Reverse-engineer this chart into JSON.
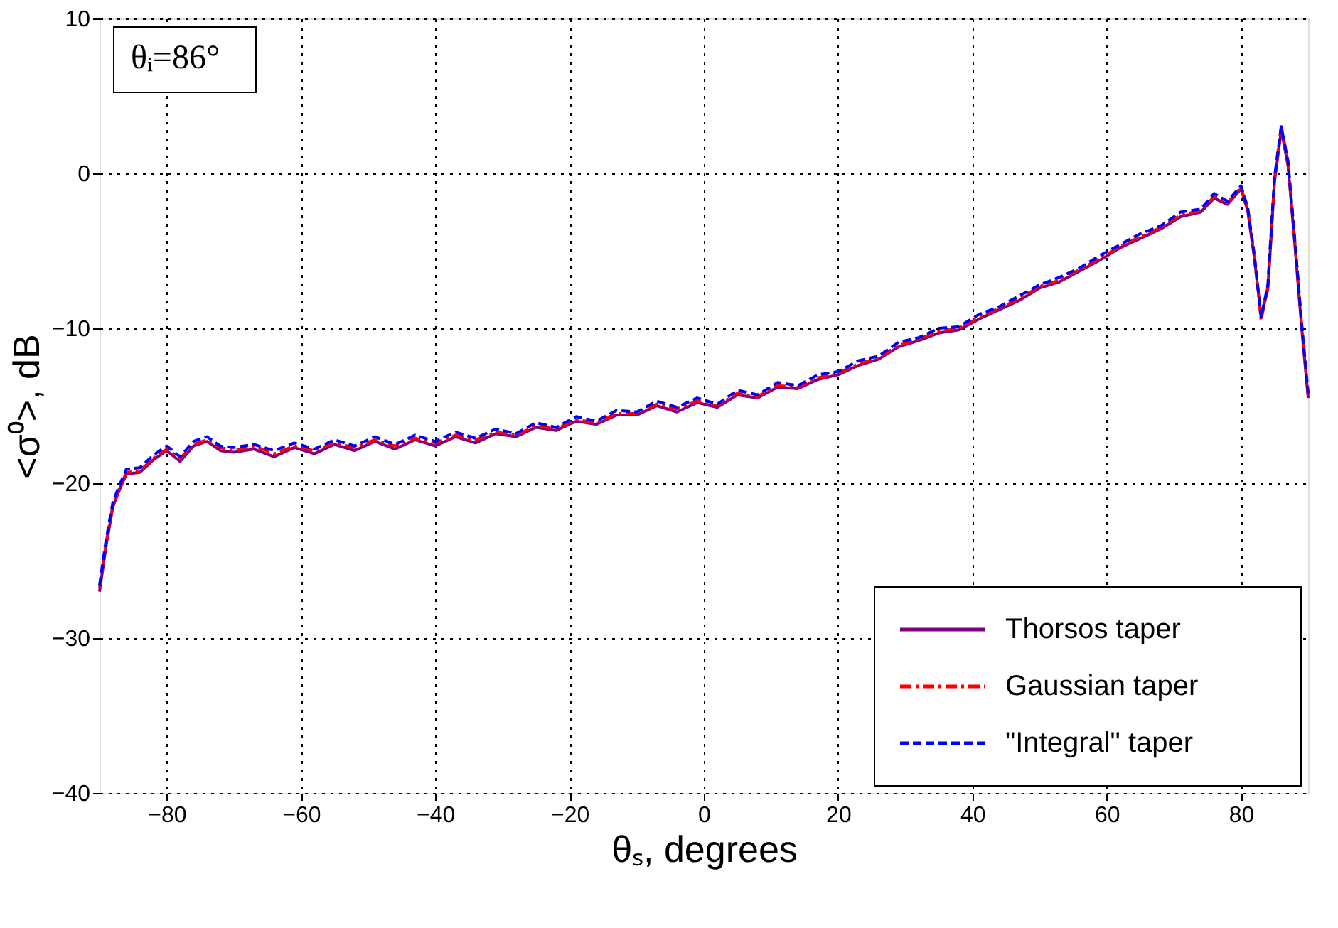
{
  "chart_data": {
    "type": "line",
    "xlabel": "θₛ, degrees",
    "ylabel": "<σ⁰>,  dB",
    "annotations": [
      "θᵢ=86°"
    ],
    "x": [
      -90,
      -89,
      -88,
      -87,
      -86,
      -84,
      -82,
      -80,
      -78,
      -76,
      -74,
      -72,
      -70,
      -67,
      -64,
      -61,
      -58,
      -55,
      -52,
      -49,
      -46,
      -43,
      -40,
      -37,
      -34,
      -31,
      -28,
      -25,
      -22,
      -19,
      -16,
      -13,
      -10,
      -7,
      -4,
      -1,
      2,
      5,
      8,
      11,
      14,
      17,
      20,
      23,
      26,
      29,
      32,
      35,
      38,
      41,
      44,
      47,
      50,
      53,
      56,
      59,
      62,
      65,
      68,
      71,
      74,
      76,
      78,
      80,
      81,
      82,
      83,
      84,
      85,
      86,
      87,
      88,
      89,
      90
    ],
    "series": [
      {
        "name": "Thorsos taper",
        "color": "#7f007f",
        "line_style": "solid",
        "values": [
          -27,
          -24,
          -21.5,
          -20.4,
          -19.4,
          -19.3,
          -18.5,
          -17.9,
          -18.6,
          -17.6,
          -17.3,
          -17.9,
          -18.0,
          -17.8,
          -18.3,
          -17.7,
          -18.1,
          -17.5,
          -17.9,
          -17.3,
          -17.8,
          -17.2,
          -17.6,
          -17.0,
          -17.4,
          -16.8,
          -17.0,
          -16.4,
          -16.6,
          -16.0,
          -16.2,
          -15.6,
          -15.6,
          -15.0,
          -15.4,
          -14.8,
          -15.1,
          -14.3,
          -14.5,
          -13.8,
          -13.9,
          -13.3,
          -13.0,
          -12.4,
          -12.0,
          -11.2,
          -10.8,
          -10.3,
          -10.1,
          -9.4,
          -8.8,
          -8.2,
          -7.4,
          -7.0,
          -6.3,
          -5.6,
          -4.8,
          -4.2,
          -3.6,
          -2.8,
          -2.5,
          -1.6,
          -2.0,
          -1.0,
          -2.4,
          -5.5,
          -9.2,
          -7.5,
          -0.5,
          2.8,
          0.5,
          -4.5,
          -9.8,
          -14.5
        ]
      },
      {
        "name": "Gaussian taper",
        "color": "#ff0000",
        "line_style": "dashdot",
        "values": [
          -26.8,
          -23.8,
          -21.4,
          -20.3,
          -19.3,
          -19.2,
          -18.4,
          -17.8,
          -18.4,
          -17.5,
          -17.2,
          -17.7,
          -17.9,
          -17.6,
          -18.1,
          -17.6,
          -17.9,
          -17.4,
          -17.7,
          -17.2,
          -17.6,
          -17.1,
          -17.4,
          -16.9,
          -17.2,
          -16.7,
          -16.9,
          -16.3,
          -16.5,
          -15.9,
          -16.1,
          -15.5,
          -15.5,
          -14.9,
          -15.2,
          -14.7,
          -15.0,
          -14.2,
          -14.4,
          -13.7,
          -13.8,
          -13.2,
          -12.9,
          -12.3,
          -11.9,
          -11.1,
          -10.7,
          -10.2,
          -10.0,
          -9.3,
          -8.7,
          -8.1,
          -7.3,
          -6.9,
          -6.2,
          -5.5,
          -4.7,
          -4.1,
          -3.5,
          -2.7,
          -2.4,
          -1.5,
          -1.9,
          -0.9,
          -2.3,
          -5.4,
          -9.5,
          -7.3,
          -0.3,
          3.1,
          0.7,
          -4.3,
          -9.6,
          -14.3
        ]
      },
      {
        "name": "\"Integral\" taper",
        "color": "#0000ff",
        "line_style": "dashed",
        "values": [
          -26.6,
          -23.6,
          -21.2,
          -20.1,
          -19.1,
          -19.0,
          -18.2,
          -17.6,
          -18.3,
          -17.3,
          -17.0,
          -17.6,
          -17.7,
          -17.5,
          -17.9,
          -17.4,
          -17.8,
          -17.2,
          -17.6,
          -17.0,
          -17.5,
          -16.9,
          -17.3,
          -16.7,
          -17.1,
          -16.5,
          -16.8,
          -16.1,
          -16.4,
          -15.7,
          -16.0,
          -15.3,
          -15.4,
          -14.7,
          -15.1,
          -14.5,
          -14.9,
          -14.0,
          -14.3,
          -13.5,
          -13.7,
          -13.0,
          -12.8,
          -12.1,
          -11.8,
          -10.9,
          -10.6,
          -10.0,
          -9.9,
          -9.1,
          -8.6,
          -7.9,
          -7.2,
          -6.7,
          -6.1,
          -5.3,
          -4.6,
          -3.9,
          -3.4,
          -2.5,
          -2.3,
          -1.3,
          -1.8,
          -0.8,
          -2.2,
          -5.3,
          -9.3,
          -7.2,
          -0.2,
          3.0,
          0.8,
          -4.2,
          -9.5,
          -14.2
        ]
      }
    ],
    "xlim": [
      -90,
      90
    ],
    "xticks": [
      -80,
      -60,
      -40,
      -20,
      0,
      20,
      40,
      60,
      80
    ],
    "ylim": [
      -40,
      10
    ],
    "yticks": [
      -40,
      -30,
      -20,
      -10,
      0,
      10
    ],
    "grid": true,
    "legend": "bottom right",
    "marker": "none"
  }
}
